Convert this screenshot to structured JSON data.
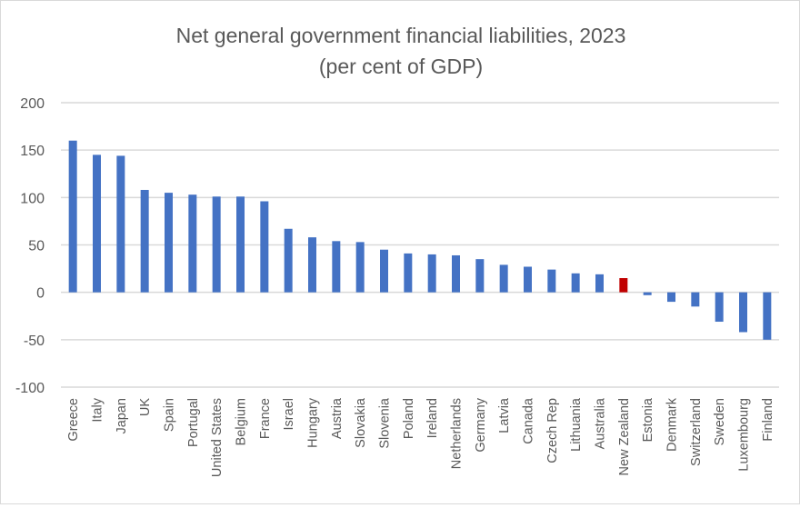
{
  "chart_data": {
    "type": "bar",
    "title": "Net general government financial liabilities, 2023",
    "subtitle": "(per cent of GDP)",
    "xlabel": "",
    "ylabel": "",
    "ylim": [
      -100,
      200
    ],
    "yticks": [
      -100,
      -50,
      0,
      50,
      100,
      150,
      200
    ],
    "grid": true,
    "legend": "none",
    "colors": {
      "default": "#4472c4",
      "highlight": "#c00000",
      "grid": "#d9d9d9",
      "text": "#595959"
    },
    "highlight": "New Zealand",
    "categories": [
      "Greece",
      "Italy",
      "Japan",
      "UK",
      "Spain",
      "Portugal",
      "United States",
      "Belgium",
      "France",
      "Israel",
      "Hungary",
      "Austria",
      "Slovakia",
      "Slovenia",
      "Poland",
      "Ireland",
      "Netherlands",
      "Germany",
      "Latvia",
      "Canada",
      "Czech Rep",
      "Lithuania",
      "Australia",
      "New Zealand",
      "Estonia",
      "Denmark",
      "Switzerland",
      "Sweden",
      "Luxembourg",
      "Finland"
    ],
    "values": [
      160,
      145,
      144,
      108,
      105,
      103,
      101,
      101,
      96,
      67,
      58,
      54,
      53,
      45,
      41,
      40,
      39,
      35,
      29,
      27,
      24,
      20,
      19,
      15,
      -3,
      -10,
      -15,
      -31,
      -42,
      -50
    ]
  }
}
